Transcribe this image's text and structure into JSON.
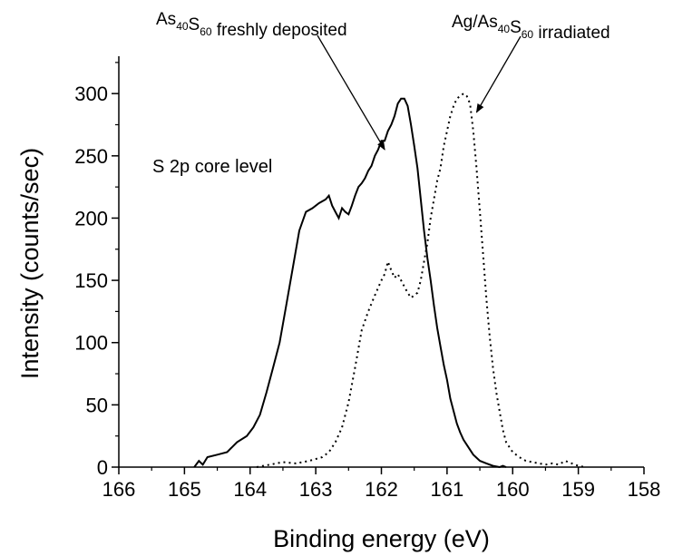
{
  "chart_data": {
    "type": "line",
    "title": "",
    "xlabel": "Binding energy (eV)",
    "ylabel": "Intensity (counts/sec)",
    "xlim": [
      166,
      158
    ],
    "ylim": [
      0,
      330
    ],
    "x_reversed": true,
    "grid": false,
    "x_ticks": [
      166,
      165,
      164,
      163,
      162,
      161,
      160,
      159,
      158
    ],
    "y_ticks": [
      0,
      50,
      100,
      150,
      200,
      250,
      300
    ],
    "series": [
      {
        "line_style": "solid",
        "color": "#000000",
        "x": [
          164.85,
          164.78,
          164.72,
          164.65,
          164.5,
          164.35,
          164.2,
          164.05,
          163.95,
          163.85,
          163.75,
          163.65,
          163.55,
          163.45,
          163.35,
          163.25,
          163.15,
          163.05,
          162.95,
          162.85,
          162.8,
          162.75,
          162.7,
          162.65,
          162.6,
          162.55,
          162.5,
          162.45,
          162.4,
          162.35,
          162.3,
          162.25,
          162.2,
          162.15,
          162.1,
          162.05,
          162.0,
          161.95,
          161.9,
          161.85,
          161.8,
          161.75,
          161.7,
          161.65,
          161.6,
          161.55,
          161.5,
          161.45,
          161.4,
          161.35,
          161.3,
          161.25,
          161.2,
          161.15,
          161.1,
          161.05,
          161.0,
          160.95,
          160.9,
          160.85,
          160.8,
          160.75,
          160.7,
          160.6,
          160.5,
          160.4,
          160.3,
          160.2,
          160.15,
          160.1
        ],
        "y": [
          0,
          5,
          2,
          8,
          10,
          12,
          20,
          25,
          32,
          42,
          60,
          80,
          100,
          130,
          160,
          190,
          205,
          208,
          212,
          215,
          218,
          210,
          205,
          200,
          208,
          205,
          203,
          210,
          218,
          225,
          228,
          232,
          238,
          242,
          250,
          255,
          262,
          262,
          270,
          275,
          282,
          292,
          296,
          296,
          290,
          275,
          258,
          240,
          215,
          190,
          168,
          150,
          130,
          112,
          97,
          82,
          70,
          55,
          45,
          35,
          28,
          22,
          18,
          10,
          5,
          3,
          1,
          0,
          1,
          0
        ]
      },
      {
        "line_style": "dotted",
        "color": "#000000",
        "x": [
          163.9,
          163.7,
          163.5,
          163.3,
          163.1,
          162.9,
          162.8,
          162.7,
          162.6,
          162.5,
          162.4,
          162.3,
          162.2,
          162.1,
          162.0,
          161.95,
          161.9,
          161.85,
          161.8,
          161.75,
          161.7,
          161.65,
          161.6,
          161.55,
          161.5,
          161.45,
          161.4,
          161.35,
          161.3,
          161.25,
          161.2,
          161.15,
          161.1,
          161.05,
          161.0,
          160.95,
          160.9,
          160.85,
          160.8,
          160.75,
          160.7,
          160.65,
          160.6,
          160.55,
          160.5,
          160.45,
          160.4,
          160.35,
          160.3,
          160.25,
          160.2,
          160.15,
          160.1,
          160.0,
          159.9,
          159.8,
          159.7,
          159.6,
          159.5,
          159.4,
          159.3,
          159.2,
          159.1,
          159.0,
          158.9
        ],
        "y": [
          0,
          2,
          4,
          3,
          5,
          8,
          12,
          20,
          32,
          52,
          80,
          110,
          125,
          138,
          150,
          155,
          165,
          158,
          152,
          155,
          150,
          145,
          140,
          136,
          138,
          140,
          150,
          165,
          180,
          200,
          215,
          230,
          240,
          258,
          270,
          282,
          290,
          296,
          298,
          300,
          298,
          292,
          270,
          240,
          205,
          170,
          135,
          105,
          80,
          60,
          45,
          30,
          20,
          12,
          8,
          5,
          4,
          3,
          2,
          3,
          2,
          5,
          3,
          1,
          0
        ]
      }
    ],
    "annotations": [
      {
        "parts": [
          {
            "text": "As",
            "role": "normal"
          },
          {
            "text": "40",
            "role": "sub"
          },
          {
            "text": "S",
            "role": "normal"
          },
          {
            "text": "60",
            "role": "sub"
          },
          {
            "text": " freshly deposited",
            "role": "normal"
          }
        ],
        "arrow_to": {
          "x": 161.95,
          "y": 255
        }
      },
      {
        "parts": [
          {
            "text": "Ag/As",
            "role": "normal"
          },
          {
            "text": "40",
            "role": "sub"
          },
          {
            "text": "S",
            "role": "normal"
          },
          {
            "text": "60",
            "role": "sub"
          },
          {
            "text": " irradiated",
            "role": "normal"
          }
        ],
        "arrow_to": {
          "x": 160.55,
          "y": 285
        }
      }
    ],
    "inplot_label": "S 2p core level"
  }
}
